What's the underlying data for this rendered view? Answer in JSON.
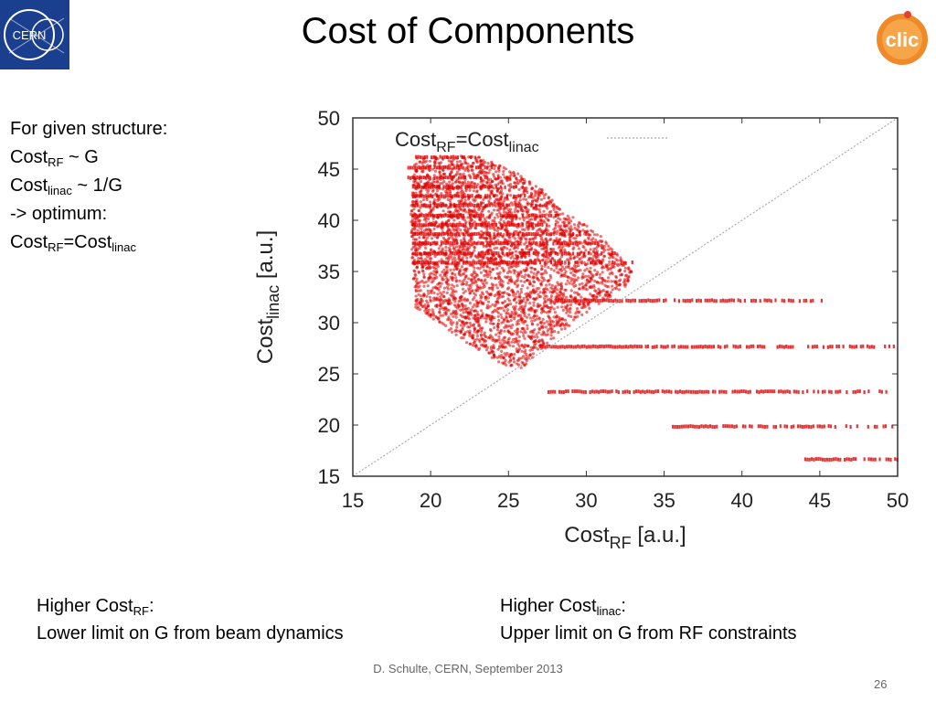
{
  "title": "Cost of Components",
  "side_notes": {
    "line1": "For given structure:",
    "line2_a": "Cost",
    "line2_sub": "RF",
    "line2_b": " ~ G",
    "line3_a": "Cost",
    "line3_sub": "linac",
    "line3_b": " ~ 1/G",
    "line4": "-> optimum:",
    "line5_a": "Cost",
    "line5_sub": "RF",
    "line5_b": "=Cost",
    "line5_sub2": "linac"
  },
  "bottom_left": {
    "head_a": "Higher Cost",
    "head_sub": "RF",
    "head_b": ":",
    "body": "Lower limit on G from beam dynamics"
  },
  "bottom_right": {
    "head_a": "Higher Cost",
    "head_sub": "linac",
    "head_b": ":",
    "body": "Upper limit on G from RF constraints"
  },
  "footer": "D. Schulte, CERN, September 2013",
  "page_number": "26",
  "logos": {
    "left": "CERN",
    "right": "clic"
  },
  "colors": {
    "points": "#e00000",
    "diagonal": "#aaaaaa",
    "cern_blue": "#1b3f8f",
    "clic_orange": "#f08a28"
  },
  "chart_data": {
    "type": "scatter",
    "xlabel_a": "Cost",
    "xlabel_sub": "RF",
    "xlabel_b": " [a.u.]",
    "ylabel_a": "Cost",
    "ylabel_sub": "linac",
    "ylabel_b": " [a.u.]",
    "legend_a": "Cost",
    "legend_sub": "RF",
    "legend_b": "=Cost",
    "legend_sub2": "linac",
    "legend_placement": "top-left",
    "xlim": [
      15,
      50
    ],
    "ylim": [
      15,
      50
    ],
    "xticks": [
      15,
      20,
      25,
      30,
      35,
      40,
      45,
      50
    ],
    "yticks": [
      15,
      20,
      25,
      30,
      35,
      40,
      45,
      50
    ],
    "grid": false,
    "reference_line": {
      "x": [
        15,
        50
      ],
      "y": [
        15,
        50
      ]
    },
    "cloud_boundary": [
      [
        19.0,
        46.2
      ],
      [
        23.0,
        46.3
      ],
      [
        26.5,
        44.0
      ],
      [
        28.5,
        41.0
      ],
      [
        31.0,
        38.5
      ],
      [
        33.0,
        35.0
      ],
      [
        32.5,
        33.5
      ],
      [
        30.0,
        31.0
      ],
      [
        27.5,
        28.0
      ],
      [
        25.8,
        25.4
      ],
      [
        24.5,
        26.0
      ],
      [
        22.5,
        27.8
      ],
      [
        20.5,
        30.0
      ],
      [
        19.0,
        31.5
      ],
      [
        18.8,
        36.0
      ],
      [
        18.7,
        42.0
      ]
    ],
    "bands": [
      {
        "y": 46.2,
        "x": [
          19.0,
          23.0
        ]
      },
      {
        "y": 45.2,
        "x": [
          18.5,
          24.0
        ]
      },
      {
        "y": 44.2,
        "x": [
          18.5,
          25.0
        ]
      },
      {
        "y": 43.3,
        "x": [
          18.8,
          26.0
        ]
      },
      {
        "y": 42.4,
        "x": [
          18.8,
          26.5
        ]
      },
      {
        "y": 41.5,
        "x": [
          18.8,
          27.5
        ]
      },
      {
        "y": 40.5,
        "x": [
          18.8,
          28.0
        ]
      },
      {
        "y": 39.6,
        "x": [
          18.8,
          29.0
        ]
      },
      {
        "y": 38.7,
        "x": [
          18.8,
          30.0
        ]
      },
      {
        "y": 37.8,
        "x": [
          18.8,
          31.0
        ]
      },
      {
        "y": 36.8,
        "x": [
          18.8,
          32.0
        ]
      },
      {
        "y": 35.9,
        "x": [
          18.8,
          33.0
        ]
      },
      {
        "y": 32.2,
        "x": [
          28.0,
          46.0
        ]
      },
      {
        "y": 27.7,
        "x": [
          27.0,
          50.0
        ]
      },
      {
        "y": 23.3,
        "x": [
          27.5,
          50.0
        ]
      },
      {
        "y": 19.9,
        "x": [
          35.5,
          50.0
        ]
      },
      {
        "y": 16.7,
        "x": [
          44.0,
          50.0
        ]
      }
    ]
  }
}
